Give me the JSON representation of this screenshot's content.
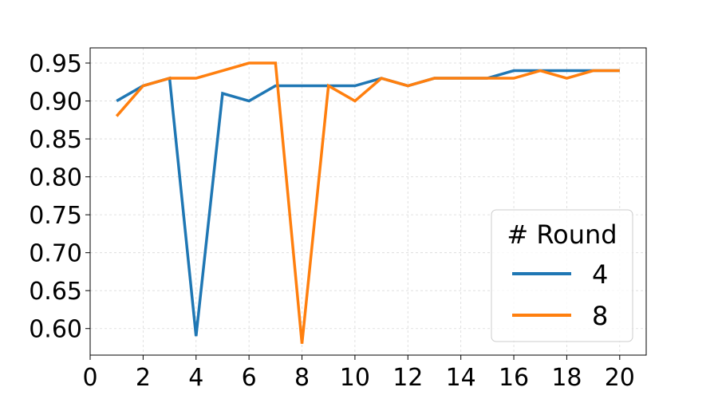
{
  "chart_data": {
    "type": "line",
    "title": "",
    "xlabel": "",
    "ylabel": "",
    "xlim": [
      0,
      21
    ],
    "ylim": [
      0.565,
      0.97
    ],
    "xticks": [
      0,
      2,
      4,
      6,
      8,
      10,
      12,
      14,
      16,
      18,
      20
    ],
    "yticks": [
      0.6,
      0.65,
      0.7,
      0.75,
      0.8,
      0.85,
      0.9,
      0.95
    ],
    "xtick_labels": [
      "0",
      "2",
      "4",
      "6",
      "8",
      "10",
      "12",
      "14",
      "16",
      "18",
      "20"
    ],
    "ytick_labels": [
      "0.60",
      "0.65",
      "0.70",
      "0.75",
      "0.80",
      "0.85",
      "0.90",
      "0.95"
    ],
    "grid": true,
    "legend": {
      "title": "# Round",
      "placement": "bottom-right"
    },
    "x": [
      1,
      2,
      3,
      4,
      5,
      6,
      7,
      8,
      9,
      10,
      11,
      12,
      13,
      14,
      15,
      16,
      17,
      18,
      19,
      20
    ],
    "series": [
      {
        "name": "4",
        "color": "#1f77b4",
        "values": [
          0.9,
          0.92,
          0.93,
          0.59,
          0.91,
          0.9,
          0.92,
          0.92,
          0.92,
          0.92,
          0.93,
          0.92,
          0.93,
          0.93,
          0.93,
          0.94,
          0.94,
          0.94,
          0.94,
          0.94
        ]
      },
      {
        "name": "8",
        "color": "#ff7f0e",
        "values": [
          0.88,
          0.92,
          0.93,
          0.93,
          0.94,
          0.95,
          0.95,
          0.58,
          0.92,
          0.9,
          0.93,
          0.92,
          0.93,
          0.93,
          0.93,
          0.93,
          0.94,
          0.93,
          0.94,
          0.94
        ]
      }
    ]
  }
}
